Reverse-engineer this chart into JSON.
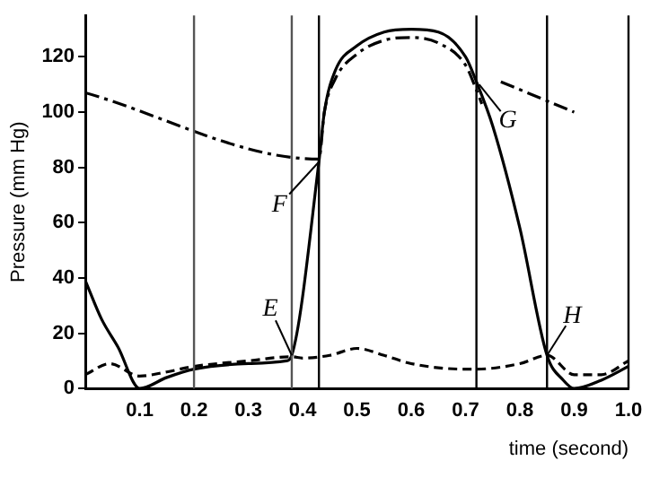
{
  "chart_data": {
    "type": "line",
    "xlabel": "time (second)",
    "ylabel": "Pressure (mm Hg)",
    "xlim": [
      0,
      1
    ],
    "xticks": [
      0.1,
      0.2,
      0.3,
      0.4,
      0.5,
      0.6,
      0.7,
      0.8,
      0.9,
      {
        "value": 1,
        "label": "1.0"
      }
    ],
    "ylim": [
      0,
      135
    ],
    "yticks": [
      0,
      20,
      40,
      60,
      80,
      100,
      120
    ],
    "grid": false,
    "legend": false,
    "marker": "none",
    "series": [
      {
        "color": "#000000",
        "line_style": "solid",
        "x": [
          0,
          0.03,
          0.06,
          0.1,
          0.15,
          0.2,
          0.3,
          0.37,
          0.38,
          0.43,
          0.44,
          0.46,
          0.5,
          0.55,
          0.6,
          0.65,
          0.7,
          0.72,
          0.75,
          0.8,
          0.85,
          0.88,
          0.9,
          0.95,
          1.0
        ],
        "values": [
          39,
          25,
          15,
          0,
          4,
          7,
          9,
          10,
          12,
          82,
          100,
          115,
          124,
          129,
          130,
          129,
          120,
          111,
          95,
          58,
          12,
          3,
          0,
          3,
          8
        ]
      },
      {
        "color": "#000000",
        "line_style": "dashed",
        "x": [
          0,
          0.045,
          0.1,
          0.15,
          0.2,
          0.3,
          0.38,
          0.4,
          0.45,
          0.5,
          0.55,
          0.6,
          0.7,
          0.72,
          0.8,
          0.85,
          0.9,
          0.95,
          1.0
        ],
        "values": [
          5,
          9,
          4.5,
          6,
          8,
          10,
          11.5,
          11,
          12,
          14.5,
          12,
          9,
          7,
          7,
          9,
          12,
          5,
          5,
          10
        ]
      },
      {
        "color": "#000000",
        "line_style": "dashdot",
        "x": [
          0,
          0.43,
          0.44,
          0.46,
          0.5,
          0.55,
          0.6,
          0.65,
          0.7,
          0.72,
          0.73,
          0.74,
          0.765,
          0.9
        ],
        "values": [
          107,
          83,
          100,
          112,
          121,
          126,
          127,
          125,
          117,
          108,
          103,
          null,
          111,
          100
        ]
      }
    ],
    "ref_lines": [
      {
        "axis": "x",
        "value": 0.2,
        "color": "#555555"
      },
      {
        "axis": "x",
        "value": 0.38,
        "color": "#555555"
      },
      {
        "axis": "x",
        "value": 0.43,
        "color": "#000000"
      },
      {
        "axis": "x",
        "value": 0.72,
        "color": "#000000"
      },
      {
        "axis": "x",
        "value": 0.85,
        "color": "#000000"
      },
      {
        "axis": "x",
        "value": 1.0,
        "color": "#000000"
      }
    ],
    "annotations": [
      {
        "text": "E",
        "x": 0.38,
        "y": 12
      },
      {
        "text": "F",
        "x": 0.43,
        "y": 82
      },
      {
        "text": "G",
        "x": 0.725,
        "y": 110
      },
      {
        "text": "H",
        "x": 0.85,
        "y": 12
      }
    ]
  }
}
